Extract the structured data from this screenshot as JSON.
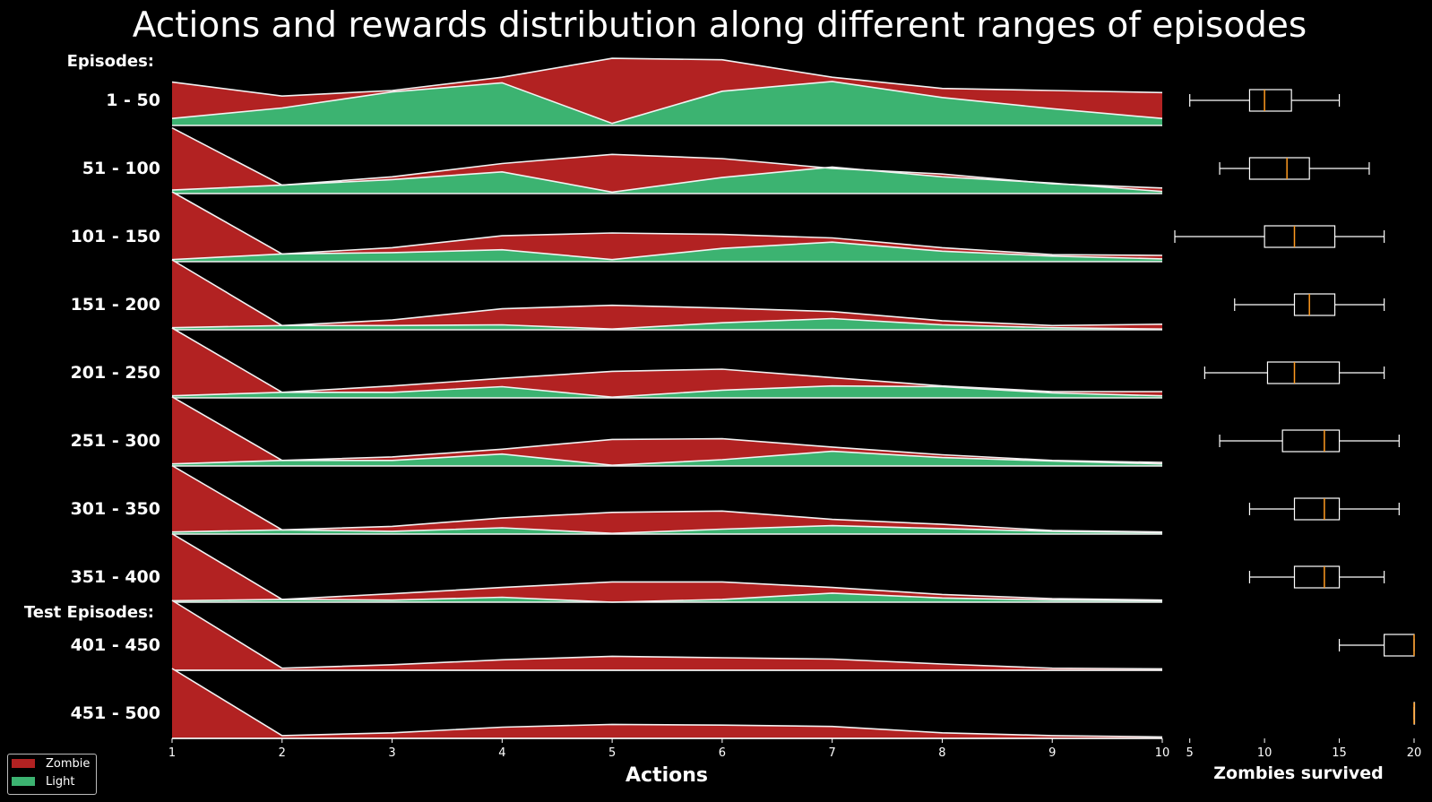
{
  "chart_data": {
    "type": "area",
    "title": "Actions and rewards distribution along different ranges of episodes",
    "xlabel": "Actions",
    "x": [
      1,
      2,
      3,
      4,
      5,
      6,
      7,
      8,
      9,
      10
    ],
    "group_headers": {
      "train": "Episodes:",
      "test": "Test Episodes:"
    },
    "colors": {
      "zombie": "#b22222",
      "light": "#3cb371",
      "background": "#000000",
      "box_median": "#ff9a1f"
    },
    "legend": [
      {
        "key": "zombie",
        "label": "Zombie",
        "color": "#b22222"
      },
      {
        "key": "light",
        "label": "Light",
        "color": "#3cb371"
      }
    ],
    "legend_position": "lower-left",
    "ranges": [
      {
        "label": "1 - 50",
        "zombie": [
          0.62,
          0.42,
          0.5,
          0.69,
          0.96,
          0.94,
          0.69,
          0.53,
          0.5,
          0.47
        ],
        "light": [
          0.1,
          0.25,
          0.48,
          0.61,
          0.03,
          0.49,
          0.63,
          0.4,
          0.24,
          0.1
        ],
        "box": {
          "min": 5,
          "q1": 9,
          "median": 10,
          "q3": 11.8,
          "max": 15
        }
      },
      {
        "label": "51 - 100",
        "zombie": [
          0.94,
          0.12,
          0.24,
          0.43,
          0.56,
          0.5,
          0.36,
          0.28,
          0.14,
          0.08
        ],
        "light": [
          0.05,
          0.12,
          0.2,
          0.31,
          0.02,
          0.23,
          0.38,
          0.24,
          0.15,
          0.03
        ],
        "box": {
          "min": 7,
          "q1": 9,
          "median": 11.5,
          "q3": 13,
          "max": 17
        }
      },
      {
        "label": "101 - 150",
        "zombie": [
          1.0,
          0.11,
          0.2,
          0.37,
          0.41,
          0.39,
          0.34,
          0.2,
          0.1,
          0.09
        ],
        "light": [
          0.03,
          0.11,
          0.13,
          0.17,
          0.03,
          0.19,
          0.28,
          0.15,
          0.08,
          0.04
        ],
        "box": {
          "min": 4,
          "q1": 10,
          "median": 12,
          "q3": 14.7,
          "max": 18
        }
      },
      {
        "label": "151 - 200",
        "zombie": [
          1.0,
          0.06,
          0.14,
          0.3,
          0.35,
          0.31,
          0.26,
          0.13,
          0.06,
          0.08
        ],
        "light": [
          0.03,
          0.06,
          0.06,
          0.07,
          0.01,
          0.1,
          0.16,
          0.07,
          0.03,
          0.01
        ],
        "box": {
          "min": 8,
          "q1": 12,
          "median": 13,
          "q3": 14.7,
          "max": 18
        }
      },
      {
        "label": "201 - 250",
        "zombie": [
          1.0,
          0.08,
          0.17,
          0.28,
          0.38,
          0.41,
          0.29,
          0.17,
          0.09,
          0.09
        ],
        "light": [
          0.03,
          0.08,
          0.08,
          0.16,
          0.01,
          0.11,
          0.17,
          0.16,
          0.07,
          0.03
        ],
        "box": {
          "min": 6,
          "q1": 10.2,
          "median": 12,
          "q3": 15,
          "max": 18
        }
      },
      {
        "label": "251 - 300",
        "zombie": [
          0.99,
          0.08,
          0.13,
          0.24,
          0.38,
          0.39,
          0.27,
          0.16,
          0.08,
          0.05
        ],
        "light": [
          0.03,
          0.08,
          0.08,
          0.17,
          0.01,
          0.09,
          0.21,
          0.12,
          0.07,
          0.03
        ],
        "box": {
          "min": 7,
          "q1": 11.2,
          "median": 14,
          "q3": 15,
          "max": 19
        }
      },
      {
        "label": "301 - 350",
        "zombie": [
          0.98,
          0.06,
          0.11,
          0.23,
          0.31,
          0.33,
          0.21,
          0.14,
          0.05,
          0.03
        ],
        "light": [
          0.03,
          0.06,
          0.04,
          0.09,
          0.01,
          0.07,
          0.12,
          0.08,
          0.04,
          0.02
        ],
        "box": {
          "min": 9,
          "q1": 12,
          "median": 14,
          "q3": 15,
          "max": 19
        }
      },
      {
        "label": "351 - 400",
        "zombie": [
          0.98,
          0.04,
          0.12,
          0.21,
          0.29,
          0.29,
          0.21,
          0.11,
          0.05,
          0.03
        ],
        "light": [
          0.02,
          0.04,
          0.03,
          0.07,
          0.0,
          0.04,
          0.13,
          0.06,
          0.03,
          0.02
        ],
        "box": {
          "min": 9,
          "q1": 12,
          "median": 14,
          "q3": 15,
          "max": 18
        }
      },
      {
        "label": "401 - 450",
        "zombie": [
          1.0,
          0.03,
          0.08,
          0.15,
          0.2,
          0.18,
          0.16,
          0.09,
          0.03,
          0.02
        ],
        "light": [
          0.0,
          0.0,
          0.0,
          0.0,
          0.0,
          0.0,
          0.0,
          0.0,
          0.0,
          0.0
        ],
        "box": {
          "min": 15,
          "q1": 18,
          "median": 20,
          "q3": 20,
          "max": 20
        }
      },
      {
        "label": "451 - 500",
        "zombie": [
          1.0,
          0.04,
          0.08,
          0.16,
          0.2,
          0.19,
          0.17,
          0.08,
          0.04,
          0.02
        ],
        "light": [
          0.0,
          0.0,
          0.0,
          0.0,
          0.0,
          0.0,
          0.0,
          0.0,
          0.0,
          0.0
        ],
        "box": {
          "min": 20,
          "q1": 20,
          "median": 20,
          "q3": 20,
          "max": 20
        }
      }
    ],
    "box_axis": {
      "xlabel": "Zombies survived",
      "ticks": [
        5,
        10,
        15,
        20
      ],
      "xlim": [
        4,
        20
      ]
    }
  }
}
